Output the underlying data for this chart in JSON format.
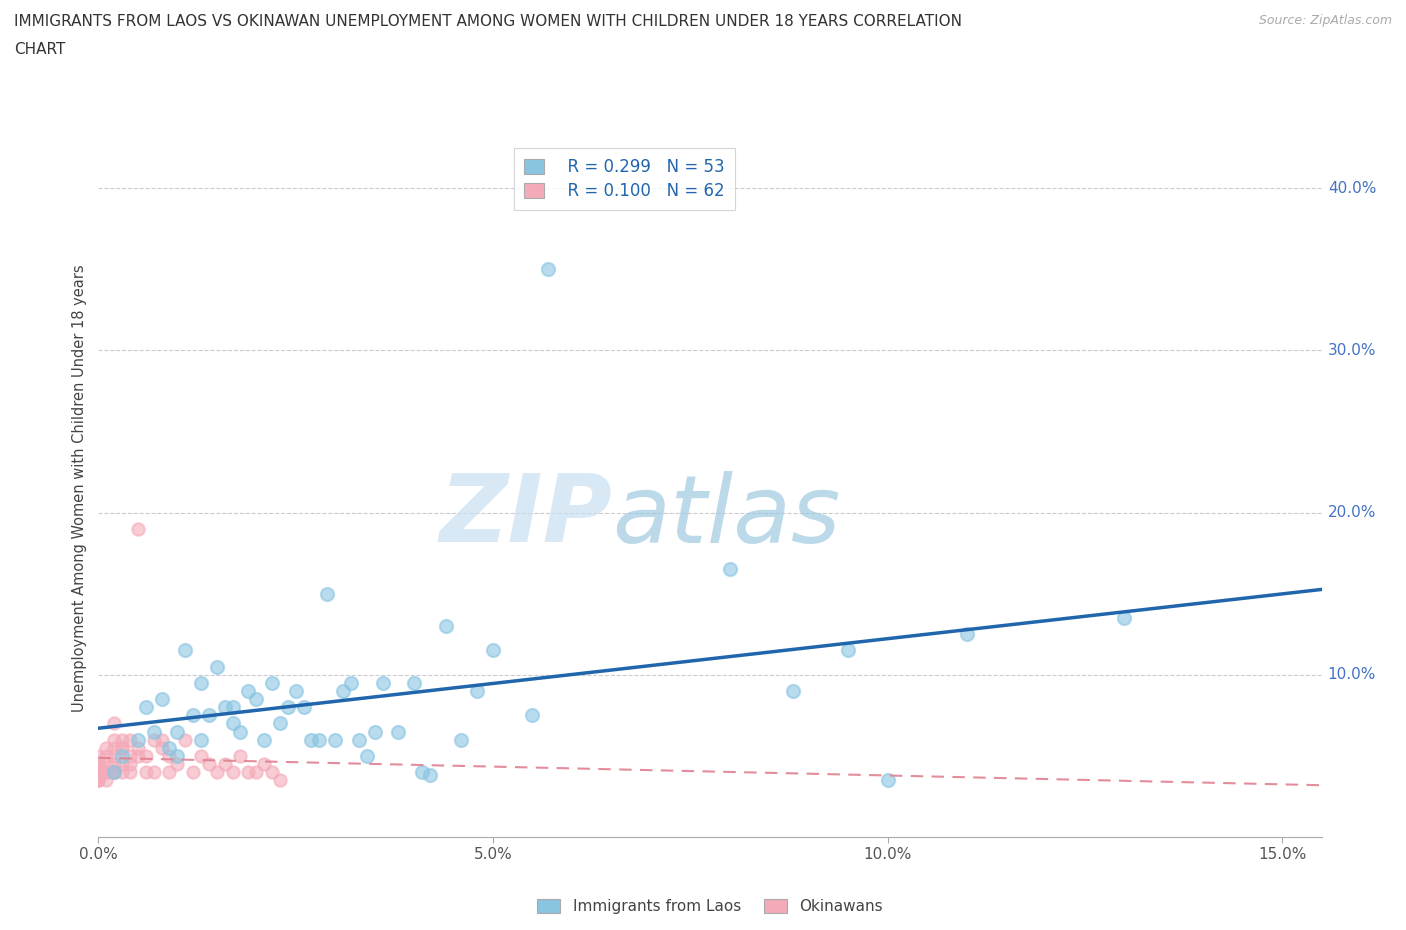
{
  "title_line1": "IMMIGRANTS FROM LAOS VS OKINAWAN UNEMPLOYMENT AMONG WOMEN WITH CHILDREN UNDER 18 YEARS CORRELATION",
  "title_line2": "CHART",
  "source": "Source: ZipAtlas.com",
  "ylabel": "Unemployment Among Women with Children Under 18 years",
  "xlim": [
    0.0,
    0.155
  ],
  "ylim": [
    0.0,
    0.43
  ],
  "xticks": [
    0.0,
    0.05,
    0.1,
    0.15
  ],
  "xtick_labels": [
    "0.0%",
    "5.0%",
    "10.0%",
    "15.0%"
  ],
  "yticks_right": [
    0.1,
    0.2,
    0.3,
    0.4
  ],
  "ytick_right_labels": [
    "10.0%",
    "20.0%",
    "30.0%",
    "40.0%"
  ],
  "blue_color": "#89c4e1",
  "pink_color": "#f4aab8",
  "blue_line_color": "#2166ac",
  "pink_line_color": "#e08090",
  "legend_R_blue": "R = 0.299",
  "legend_N_blue": "N = 53",
  "legend_R_pink": "R = 0.100",
  "legend_N_pink": "N = 62",
  "legend_label_blue": "Immigrants from Laos",
  "legend_label_pink": "Okinawans",
  "watermark_zip": "ZIP",
  "watermark_atlas": "atlas",
  "blue_scatter_x": [
    0.002,
    0.003,
    0.005,
    0.006,
    0.007,
    0.008,
    0.009,
    0.01,
    0.01,
    0.011,
    0.012,
    0.013,
    0.013,
    0.014,
    0.015,
    0.016,
    0.017,
    0.017,
    0.018,
    0.019,
    0.02,
    0.021,
    0.022,
    0.023,
    0.024,
    0.025,
    0.026,
    0.027,
    0.028,
    0.029,
    0.03,
    0.031,
    0.032,
    0.033,
    0.034,
    0.035,
    0.036,
    0.038,
    0.04,
    0.041,
    0.042,
    0.044,
    0.046,
    0.048,
    0.05,
    0.055,
    0.057,
    0.08,
    0.088,
    0.095,
    0.1,
    0.11,
    0.13
  ],
  "blue_scatter_y": [
    0.04,
    0.05,
    0.06,
    0.08,
    0.065,
    0.085,
    0.055,
    0.065,
    0.05,
    0.115,
    0.075,
    0.06,
    0.095,
    0.075,
    0.105,
    0.08,
    0.08,
    0.07,
    0.065,
    0.09,
    0.085,
    0.06,
    0.095,
    0.07,
    0.08,
    0.09,
    0.08,
    0.06,
    0.06,
    0.15,
    0.06,
    0.09,
    0.095,
    0.06,
    0.05,
    0.065,
    0.095,
    0.065,
    0.095,
    0.04,
    0.038,
    0.13,
    0.06,
    0.09,
    0.115,
    0.075,
    0.35,
    0.165,
    0.09,
    0.115,
    0.035,
    0.125,
    0.135
  ],
  "pink_scatter_x": [
    0.0,
    0.0,
    0.0,
    0.0,
    0.0,
    0.0,
    0.0,
    0.0,
    0.0,
    0.0,
    0.0,
    0.0,
    0.0,
    0.0,
    0.001,
    0.001,
    0.001,
    0.001,
    0.001,
    0.001,
    0.001,
    0.002,
    0.002,
    0.002,
    0.002,
    0.002,
    0.002,
    0.002,
    0.003,
    0.003,
    0.003,
    0.003,
    0.003,
    0.004,
    0.004,
    0.004,
    0.004,
    0.005,
    0.005,
    0.005,
    0.006,
    0.006,
    0.007,
    0.007,
    0.008,
    0.008,
    0.009,
    0.009,
    0.01,
    0.011,
    0.012,
    0.013,
    0.014,
    0.015,
    0.016,
    0.017,
    0.018,
    0.019,
    0.02,
    0.021,
    0.022,
    0.023
  ],
  "pink_scatter_y": [
    0.035,
    0.04,
    0.04,
    0.045,
    0.05,
    0.04,
    0.04,
    0.035,
    0.04,
    0.045,
    0.035,
    0.04,
    0.04,
    0.045,
    0.045,
    0.05,
    0.04,
    0.055,
    0.04,
    0.04,
    0.035,
    0.05,
    0.045,
    0.04,
    0.055,
    0.04,
    0.07,
    0.06,
    0.055,
    0.045,
    0.04,
    0.06,
    0.055,
    0.05,
    0.045,
    0.04,
    0.06,
    0.055,
    0.05,
    0.19,
    0.05,
    0.04,
    0.06,
    0.04,
    0.055,
    0.06,
    0.04,
    0.05,
    0.045,
    0.06,
    0.04,
    0.05,
    0.045,
    0.04,
    0.045,
    0.04,
    0.05,
    0.04,
    0.04,
    0.045,
    0.04,
    0.035
  ]
}
